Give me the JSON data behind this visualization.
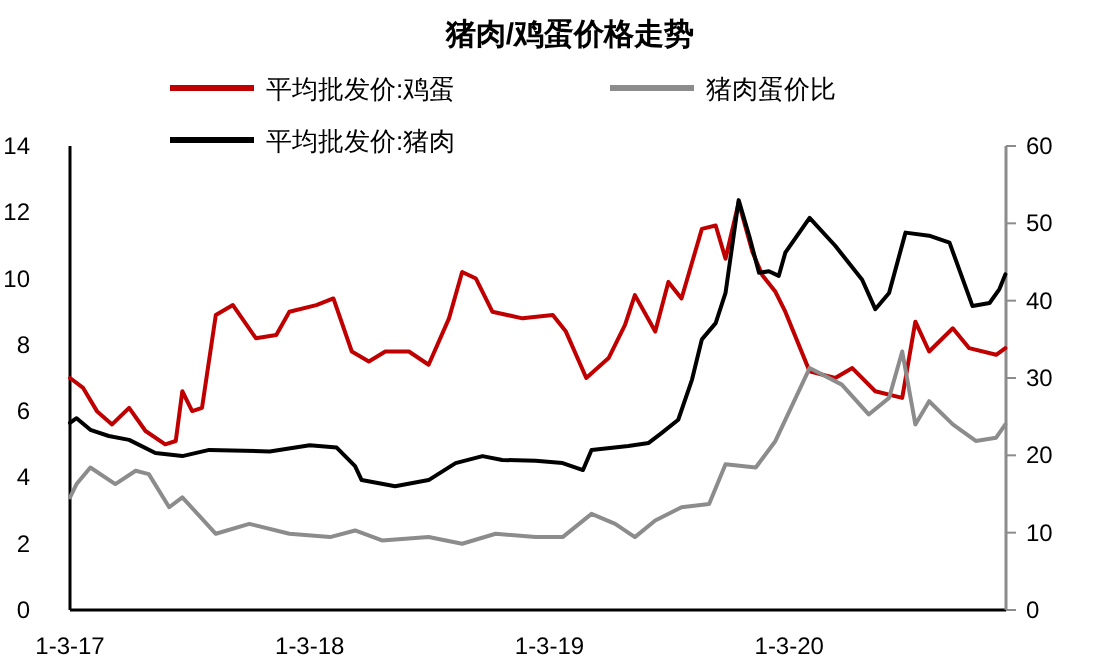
{
  "chart_data": {
    "type": "line",
    "title": "猪肉/鸡蛋价格走势",
    "legend": "top",
    "marker": "none",
    "line_style": "solid",
    "xlim": [
      "2017-01-03",
      "2020-11-28"
    ],
    "xticks": [
      {
        "value": "2017-01-03",
        "label": "1-3-17"
      },
      {
        "value": "2018-01-03",
        "label": "1-3-18"
      },
      {
        "value": "2019-01-03",
        "label": "1-3-19"
      },
      {
        "value": "2020-01-03",
        "label": "1-3-20"
      }
    ],
    "ylim": [
      0,
      14
    ],
    "yticks": [
      0,
      2,
      4,
      6,
      8,
      10,
      12,
      14
    ],
    "y2lim": [
      0,
      60
    ],
    "y2ticks": [
      0,
      10,
      20,
      30,
      40,
      50,
      60
    ],
    "series": [
      {
        "name": "平均批发价:鸡蛋",
        "color": "#c00000",
        "x": [
          "2017-01-03",
          "2017-01-23",
          "2017-02-13",
          "2017-03-08",
          "2017-04-03",
          "2017-04-28",
          "2017-05-28",
          "2017-06-13",
          "2017-06-23",
          "2017-07-08",
          "2017-07-23",
          "2017-08-13",
          "2017-09-08",
          "2017-10-13",
          "2017-11-13",
          "2017-12-03",
          "2018-01-13",
          "2018-02-08",
          "2018-03-08",
          "2018-04-03",
          "2018-04-28",
          "2018-06-03",
          "2018-07-03",
          "2018-08-03",
          "2018-08-23",
          "2018-09-13",
          "2018-10-08",
          "2018-11-23",
          "2019-01-08",
          "2019-01-28",
          "2019-02-28",
          "2019-04-03",
          "2019-04-28",
          "2019-05-13",
          "2019-06-13",
          "2019-07-03",
          "2019-07-23",
          "2019-08-23",
          "2019-09-13",
          "2019-09-28",
          "2019-10-18",
          "2019-11-08",
          "2019-11-23",
          "2019-12-13",
          "2019-12-28",
          "2020-02-03",
          "2020-03-13",
          "2020-04-08",
          "2020-05-13",
          "2020-06-23",
          "2020-07-13",
          "2020-08-03",
          "2020-09-08",
          "2020-10-03",
          "2020-11-13",
          "2020-11-27"
        ],
        "values": [
          7.0,
          6.7,
          6.0,
          5.6,
          6.1,
          5.4,
          5.0,
          5.1,
          6.6,
          6.0,
          6.1,
          8.9,
          9.2,
          8.2,
          8.3,
          9.0,
          9.2,
          9.4,
          7.8,
          7.5,
          7.8,
          7.8,
          7.4,
          8.8,
          10.2,
          10.0,
          9.0,
          8.8,
          8.9,
          8.4,
          7.0,
          7.6,
          8.6,
          9.5,
          8.4,
          9.9,
          9.4,
          11.5,
          11.6,
          10.6,
          12.3,
          10.8,
          10.1,
          9.6,
          9.0,
          7.2,
          7.0,
          7.3,
          6.6,
          6.4,
          8.7,
          7.8,
          8.5,
          7.9,
          7.7,
          7.9
        ]
      },
      {
        "name": "猪肉蛋价比",
        "color": "#8c8c8c",
        "x": [
          "2017-01-03",
          "2017-01-13",
          "2017-02-03",
          "2017-03-13",
          "2017-04-13",
          "2017-05-03",
          "2017-06-03",
          "2017-06-23",
          "2017-08-13",
          "2017-10-03",
          "2017-12-03",
          "2018-02-03",
          "2018-03-13",
          "2018-04-23",
          "2018-07-03",
          "2018-08-23",
          "2018-10-13",
          "2018-12-13",
          "2019-01-23",
          "2019-03-08",
          "2019-04-13",
          "2019-05-13",
          "2019-06-13",
          "2019-07-23",
          "2019-09-03",
          "2019-09-28",
          "2019-11-13",
          "2019-12-13",
          "2020-02-03",
          "2020-03-23",
          "2020-05-03",
          "2020-06-03",
          "2020-06-23",
          "2020-07-13",
          "2020-08-03",
          "2020-09-08",
          "2020-10-13",
          "2020-11-13",
          "2020-11-27"
        ],
        "values": [
          3.4,
          3.8,
          4.3,
          3.8,
          4.2,
          4.1,
          3.1,
          3.4,
          2.3,
          2.6,
          2.3,
          2.2,
          2.4,
          2.1,
          2.2,
          2.0,
          2.3,
          2.2,
          2.2,
          2.9,
          2.6,
          2.2,
          2.7,
          3.1,
          3.2,
          4.4,
          4.3,
          5.1,
          7.3,
          6.8,
          5.9,
          6.4,
          7.8,
          5.6,
          6.3,
          5.6,
          5.1,
          5.2,
          5.6
        ]
      },
      {
        "name": "平均批发价:猪肉",
        "color": "#000000",
        "axis": "y2",
        "x": [
          "2017-01-03",
          "2017-01-13",
          "2017-02-03",
          "2017-03-03",
          "2017-04-03",
          "2017-05-13",
          "2017-06-23",
          "2017-08-03",
          "2017-11-03",
          "2018-01-03",
          "2018-02-13",
          "2018-03-13",
          "2018-03-23",
          "2018-05-13",
          "2018-07-03",
          "2018-08-13",
          "2018-09-23",
          "2018-10-23",
          "2018-12-13",
          "2019-01-23",
          "2019-02-23",
          "2019-03-08",
          "2019-05-03",
          "2019-06-03",
          "2019-06-23",
          "2019-07-18",
          "2019-08-08",
          "2019-08-23",
          "2019-09-13",
          "2019-09-28",
          "2019-10-18",
          "2019-11-03",
          "2019-11-18",
          "2019-12-03",
          "2019-12-18",
          "2019-12-28",
          "2020-02-03",
          "2020-03-13",
          "2020-04-23",
          "2020-05-13",
          "2020-06-03",
          "2020-06-28",
          "2020-08-03",
          "2020-09-03",
          "2020-10-08",
          "2020-11-03",
          "2020-11-18",
          "2020-11-27"
        ],
        "values": [
          24.2,
          24.8,
          23.3,
          22.5,
          22.0,
          20.3,
          19.9,
          20.7,
          20.5,
          21.3,
          21.0,
          18.6,
          16.8,
          16.0,
          16.8,
          19.0,
          19.9,
          19.4,
          19.3,
          19.0,
          18.1,
          20.7,
          21.2,
          21.6,
          22.9,
          24.6,
          29.8,
          35.0,
          37.1,
          41.0,
          53.0,
          48.4,
          43.6,
          43.8,
          43.2,
          46.2,
          50.7,
          47.1,
          42.7,
          38.9,
          41.0,
          48.8,
          48.4,
          47.5,
          39.3,
          39.7,
          41.5,
          43.4
        ]
      }
    ]
  }
}
